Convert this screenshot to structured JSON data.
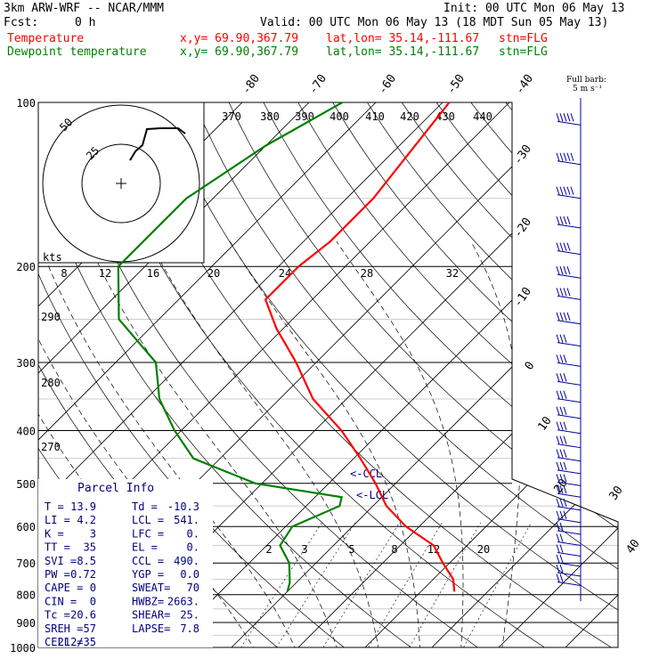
{
  "header": {
    "model": "3km ARW-WRF -- NCAR/MMM",
    "init": "Init: 00 UTC Mon 06 May 13",
    "fcst_label": "Fcst:",
    "fcst_value": "0 h",
    "valid": "Valid: 00 UTC Mon 06 May 13 (18 MDT Sun 05 May 13)",
    "lines": [
      {
        "label": "Temperature",
        "xy": "x,y= 69.90,367.79",
        "latlon": "lat,lon= 35.14,-111.67",
        "stn": "stn=FLG",
        "color": "#ff0000"
      },
      {
        "label": "Dewpoint temperature",
        "xy": "x,y= 69.90,367.79",
        "latlon": "lat,lon= 35.14,-111.67",
        "stn": "stn=FLG",
        "color": "#008000"
      }
    ]
  },
  "barb_legend": {
    "line1": "Full barb:",
    "line2": "5 m s⁻¹"
  },
  "hodograph": {
    "ring_labels": [
      "50",
      "25"
    ],
    "units": "kts"
  },
  "parcel": {
    "title": "Parcel Info",
    "rows": [
      [
        "T  =",
        "13.9",
        "Td =",
        "-10.3"
      ],
      [
        "LI =",
        "4.2",
        "LCL =",
        "541."
      ],
      [
        "K  =",
        "3",
        "LFC =",
        "0."
      ],
      [
        "TT =",
        "35",
        "EL  =",
        "0."
      ],
      [
        "SVI =",
        "8.5",
        "CCL =",
        "490."
      ],
      [
        "PW =",
        "0.72",
        "YGP =",
        "0.0"
      ],
      [
        "CAPE =",
        "0",
        "SWEAT=",
        "70"
      ],
      [
        "CIN =",
        "0",
        "HWBZ=",
        "2663."
      ],
      [
        "Tc =",
        "20.6",
        "SHEAR=",
        "25."
      ],
      [
        "SREH =",
        "57",
        "LAPSE=",
        "7.8"
      ],
      [
        "CELL =",
        "212/35",
        "",
        ""
      ]
    ]
  },
  "chart_data": {
    "type": "line",
    "title": "",
    "pressure_levels": [
      100,
      200,
      300,
      400,
      500,
      600,
      700,
      800,
      900,
      1000
    ],
    "pressure_labels": [
      "100",
      "200",
      "300",
      "400",
      "500",
      "600",
      "700",
      "800",
      "900",
      "1000"
    ],
    "isotherm_labels": [
      "-80",
      "-70",
      "-60",
      "-50",
      "-40",
      "-30",
      "-20",
      "-10",
      "0",
      "10",
      "20",
      "30",
      "40"
    ],
    "theta_labels": [
      "370",
      "380",
      "390",
      "400",
      "410",
      "420",
      "430",
      "440",
      "290",
      "280",
      "270"
    ],
    "mixing_ratio_labels": [
      "2",
      "3",
      "5",
      "8",
      "12",
      "20"
    ],
    "hodo_speed_labels": [
      "8",
      "12",
      "16",
      "20",
      "24",
      "28",
      "32"
    ],
    "lcl_labels": [
      "<-CCL",
      "<-LCL"
    ],
    "series": [
      {
        "name": "Temperature",
        "color": "#ff0000",
        "points": [
          [
            100,
            -59
          ],
          [
            150,
            -56
          ],
          [
            180,
            -56
          ],
          [
            200,
            -57
          ],
          [
            230,
            -57
          ],
          [
            260,
            -51
          ],
          [
            300,
            -43
          ],
          [
            350,
            -35
          ],
          [
            400,
            -26
          ],
          [
            450,
            -19
          ],
          [
            500,
            -13
          ],
          [
            550,
            -8
          ],
          [
            600,
            -2
          ],
          [
            650,
            5
          ],
          [
            700,
            9
          ],
          [
            750,
            13
          ],
          [
            790,
            15
          ]
        ]
      },
      {
        "name": "Dewpoint temperature",
        "color": "#008000",
        "points": [
          [
            100,
            -75
          ],
          [
            120,
            -80
          ],
          [
            150,
            -84
          ],
          [
            200,
            -84
          ],
          [
            250,
            -76
          ],
          [
            300,
            -64
          ],
          [
            350,
            -58
          ],
          [
            400,
            -51
          ],
          [
            450,
            -44
          ],
          [
            500,
            -31
          ],
          [
            530,
            -16
          ],
          [
            550,
            -15
          ],
          [
            600,
            -19
          ],
          [
            650,
            -18
          ],
          [
            700,
            -14
          ],
          [
            760,
            -11
          ],
          [
            790,
            -10
          ]
        ]
      }
    ],
    "wind_barbs": [
      {
        "p": 110,
        "speed_ms": 25
      },
      {
        "p": 130,
        "speed_ms": 25
      },
      {
        "p": 150,
        "speed_ms": 25
      },
      {
        "p": 170,
        "speed_ms": 20
      },
      {
        "p": 190,
        "speed_ms": 20
      },
      {
        "p": 210,
        "speed_ms": 20
      },
      {
        "p": 230,
        "speed_ms": 20
      },
      {
        "p": 255,
        "speed_ms": 20
      },
      {
        "p": 280,
        "speed_ms": 15
      },
      {
        "p": 305,
        "speed_ms": 15
      },
      {
        "p": 330,
        "speed_ms": 15
      },
      {
        "p": 355,
        "speed_ms": 15
      },
      {
        "p": 380,
        "speed_ms": 15
      },
      {
        "p": 405,
        "speed_ms": 15
      },
      {
        "p": 430,
        "speed_ms": 15
      },
      {
        "p": 455,
        "speed_ms": 15
      },
      {
        "p": 480,
        "speed_ms": 15
      },
      {
        "p": 505,
        "speed_ms": 15
      },
      {
        "p": 530,
        "speed_ms": 15
      },
      {
        "p": 560,
        "speed_ms": 15
      },
      {
        "p": 590,
        "speed_ms": 15
      },
      {
        "p": 620,
        "speed_ms": 10
      },
      {
        "p": 650,
        "speed_ms": 10
      },
      {
        "p": 680,
        "speed_ms": 10
      },
      {
        "p": 710,
        "speed_ms": 10
      },
      {
        "p": 740,
        "speed_ms": 10
      },
      {
        "p": 770,
        "speed_ms": 10
      }
    ]
  }
}
